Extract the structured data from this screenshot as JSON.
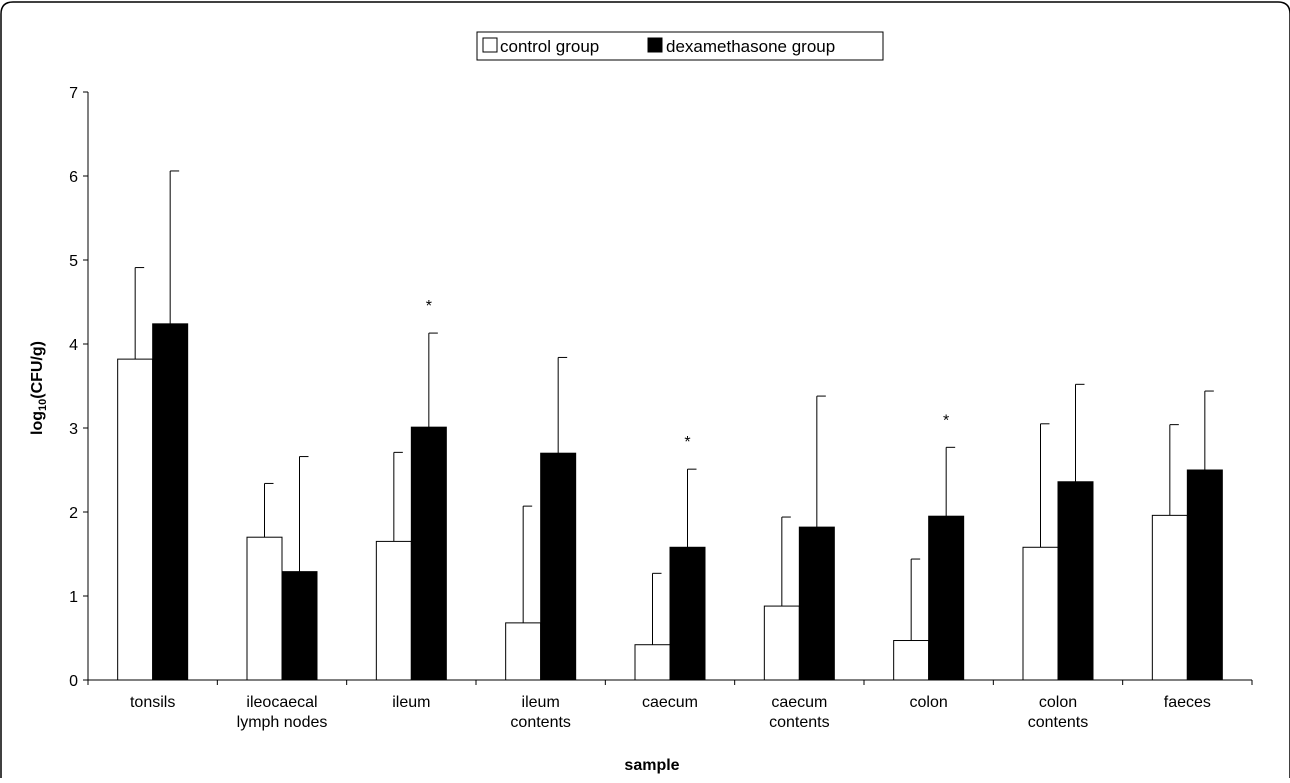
{
  "chart_data": {
    "type": "bar",
    "title": "",
    "xlabel": "sample",
    "ylabel": "log10(CFU/g)",
    "ylabel_parts": {
      "pre": "log",
      "sub": "10",
      "post": "(CFU/g)"
    },
    "ylim": [
      0,
      7
    ],
    "yticks": [
      "0",
      "1",
      "2",
      "3",
      "4",
      "5",
      "6",
      "7"
    ],
    "categories": [
      [
        "tonsils"
      ],
      [
        "ileocaecal",
        "lymph nodes"
      ],
      [
        "ileum"
      ],
      [
        "ileum",
        "contents"
      ],
      [
        "caecum"
      ],
      [
        "caecum",
        "contents"
      ],
      [
        "colon"
      ],
      [
        "colon",
        "contents"
      ],
      [
        "faeces"
      ]
    ],
    "series": [
      {
        "name": "control group",
        "color": "#ffffff",
        "values": [
          3.82,
          1.7,
          1.65,
          0.68,
          0.42,
          0.88,
          0.47,
          1.58,
          1.96
        ],
        "error_upper": [
          4.91,
          2.34,
          2.71,
          2.07,
          1.27,
          1.94,
          1.44,
          3.05,
          3.04
        ]
      },
      {
        "name": "dexamethasone group",
        "color": "#000000",
        "values": [
          4.24,
          1.29,
          3.01,
          2.7,
          1.58,
          1.82,
          1.95,
          2.36,
          2.5
        ],
        "error_upper": [
          6.06,
          2.66,
          4.13,
          3.84,
          2.51,
          3.38,
          2.77,
          3.52,
          3.44
        ]
      }
    ],
    "significance_marker": "*",
    "significant_categories": [
      2,
      4,
      6
    ],
    "legend_position": "top-center",
    "grid": false
  }
}
